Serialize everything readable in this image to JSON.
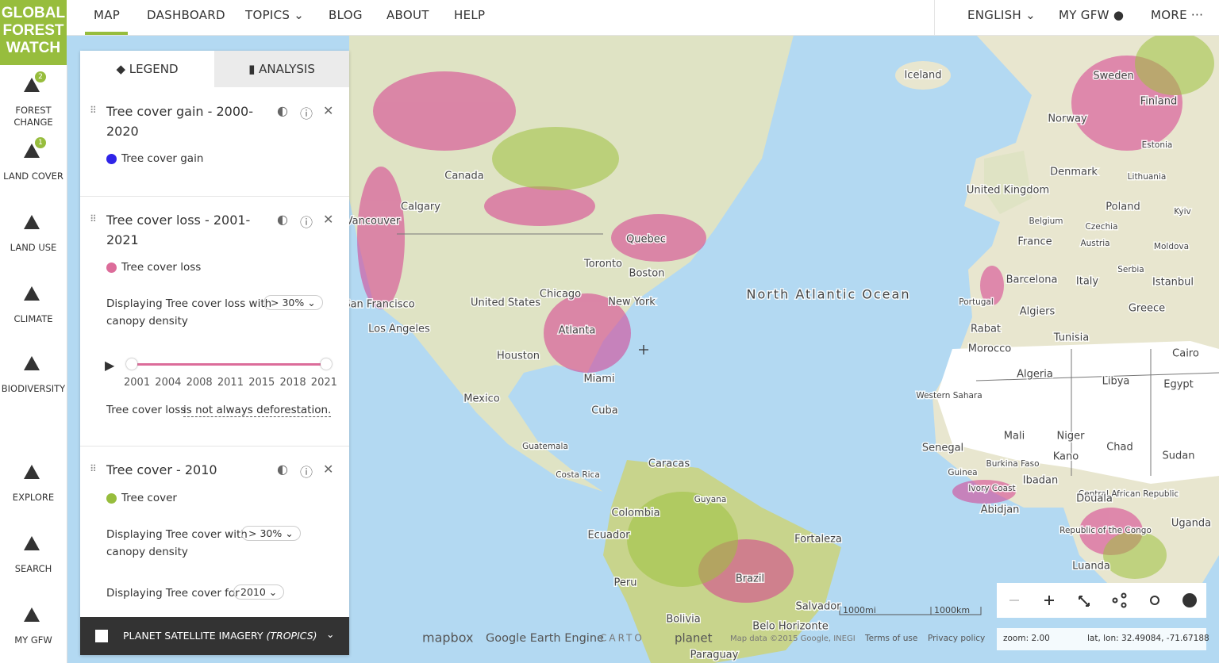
{
  "logo": [
    "GLOBAL",
    "FOREST",
    "WATCH"
  ],
  "nav": {
    "items": [
      "MAP",
      "DASHBOARD",
      "TOPICS",
      "BLOG",
      "ABOUT",
      "HELP"
    ],
    "right": [
      "ENGLISH",
      "MY GFW",
      "MORE"
    ]
  },
  "sidebar": [
    {
      "label": "FOREST CHANGE",
      "badge": 2
    },
    {
      "label": "LAND COVER",
      "badge": 1
    },
    {
      "label": "LAND USE"
    },
    {
      "label": "CLIMATE"
    },
    {
      "label": "BIODIVERSITY"
    },
    {
      "label": "EXPLORE"
    },
    {
      "label": "SEARCH"
    },
    {
      "label": "MY GFW"
    }
  ],
  "panel": {
    "tabs": [
      "LEGEND",
      "ANALYSIS"
    ],
    "layers": [
      {
        "title": "Tree cover gain - 2000-2020",
        "item": "Tree cover gain",
        "color": "#2f24e8"
      },
      {
        "title": "Tree cover loss - 2001-2021",
        "item": "Tree cover loss",
        "color": "#dc6c9a",
        "density_text": "Displaying Tree cover loss with",
        "density": "> 30%",
        "density_suffix": "canopy density",
        "years": [
          2001,
          2004,
          2008,
          2011,
          2015,
          2018,
          2021
        ],
        "note": "Tree cover loss",
        "note_link": "is not always deforestation."
      },
      {
        "title": "Tree cover - 2010",
        "item": "Tree cover",
        "color": "#97bd3d",
        "density_text": "Displaying Tree cover with",
        "density": "> 30%",
        "density_suffix": "canopy density",
        "year_text": "Displaying Tree cover for",
        "year": "2010"
      }
    ],
    "footer": {
      "label": "PLANET SATELLITE IMAGERY",
      "note": "(TROPICS)"
    }
  },
  "map": {
    "labels": [
      "Iceland",
      "Sweden",
      "Finland",
      "Norway",
      "Estonia",
      "Canada",
      "Denmark",
      "Lithuania",
      "United Kingdom",
      "Calgary",
      "Poland",
      "Kyiv",
      "Vancouver",
      "Belgium",
      "Czechia",
      "France",
      "Quebec",
      "Austria",
      "Moldova",
      "Toronto",
      "Boston",
      "North Atlantic Ocean",
      "Serbia",
      "Barcelona",
      "Italy",
      "Istanbul",
      "United States",
      "Chicago",
      "San Francisco",
      "New York",
      "Portugal",
      "Greece",
      "Algiers",
      "Los Angeles",
      "Atlanta",
      "Rabat",
      "Tunisia",
      "Morocco",
      "Houston",
      "Cairo",
      "Algeria",
      "Libya",
      "Egypt",
      "Miami",
      "Western Sahara",
      "Mexico",
      "Cuba",
      "Mali",
      "Niger",
      "Senegal",
      "Chad",
      "Sudan",
      "Guatemala",
      "Burkina Faso",
      "Kano",
      "Caracas",
      "Guinea",
      "Costa Rica",
      "Ibadan",
      "Ivory Coast",
      "Central African Republic",
      "Guyana",
      "Colombia",
      "Douala",
      "Abidjan",
      "Ecuador",
      "Fortaleza",
      "Republic of the Congo",
      "Uganda",
      "Peru",
      "Brazil",
      "Luanda",
      "Bolivia",
      "Salvador",
      "Belo Horizonte",
      "Paraguay"
    ],
    "scale": [
      "1000mi",
      "1000km"
    ],
    "attribution": [
      "mapbox",
      "Google Earth Engine",
      "CARTO",
      "planet",
      "Map data ©2015 Google, INEGI",
      "Terms of use",
      "Privacy policy"
    ],
    "zoom": "zoom: 2.00",
    "coords": "lat, lon: 32.49084, -71.67188"
  }
}
